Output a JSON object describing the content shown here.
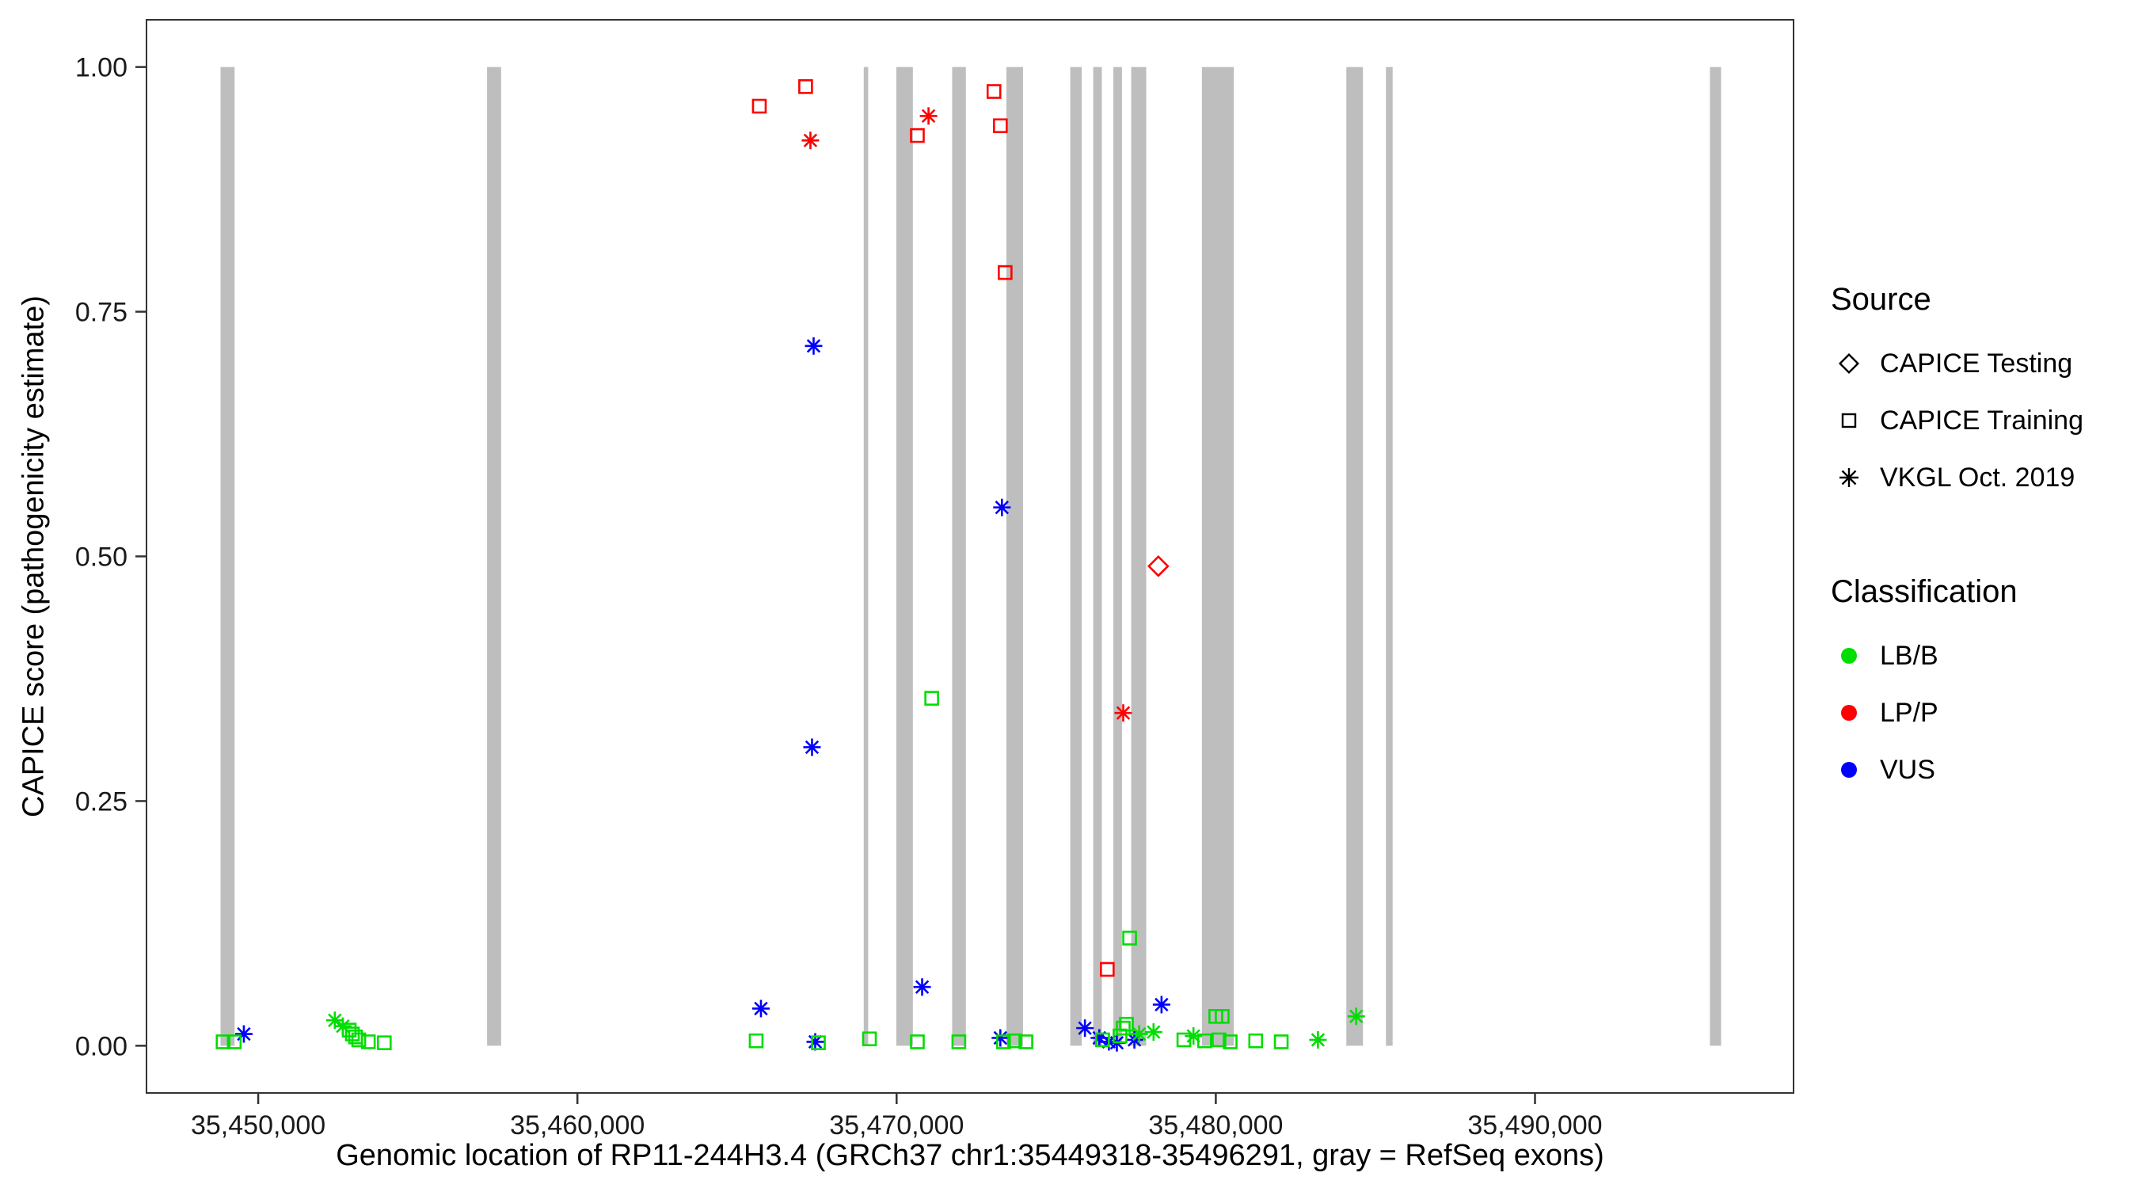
{
  "chart_data": {
    "type": "scatter",
    "title": "",
    "xlabel": "Genomic location of RP11-244H3.4 (GRCh37 chr1:35449318-35496291, gray = RefSeq exons)",
    "ylabel": "CAPICE score (pathogenicity estimate)",
    "x_range": [
      35446500,
      35498100
    ],
    "y_range": [
      0,
      1
    ],
    "x_ticks": [
      {
        "value": 35450000,
        "label": "35,450,000"
      },
      {
        "value": 35460000,
        "label": "35,460,000"
      },
      {
        "value": 35470000,
        "label": "35,470,000"
      },
      {
        "value": 35480000,
        "label": "35,480,000"
      },
      {
        "value": 35490000,
        "label": "35,490,000"
      }
    ],
    "y_ticks": [
      {
        "value": 0.0,
        "label": "0.00"
      },
      {
        "value": 0.25,
        "label": "0.25"
      },
      {
        "value": 0.5,
        "label": "0.50"
      },
      {
        "value": 0.75,
        "label": "0.75"
      },
      {
        "value": 1.0,
        "label": "1.00"
      }
    ],
    "colors": {
      "lbb": "#00DD00",
      "lpp": "#FF0000",
      "vus": "#0000FF",
      "exon": "#BEBEBE"
    },
    "shape_by_source": {
      "CAPICE Testing": "diamond",
      "CAPICE Training": "square",
      "VKGL Oct. 2019": "asterisk"
    },
    "exons": [
      [
        35448820,
        35449260
      ],
      [
        35457170,
        35457610
      ],
      [
        35468970,
        35469110
      ],
      [
        35469990,
        35470510
      ],
      [
        35471740,
        35472170
      ],
      [
        35473440,
        35473960
      ],
      [
        35475440,
        35475800
      ],
      [
        35476160,
        35476430
      ],
      [
        35476790,
        35477060
      ],
      [
        35477350,
        35477820
      ],
      [
        35479565,
        35480565
      ],
      [
        35484090,
        35484610
      ],
      [
        35485330,
        35485540
      ],
      [
        35495480,
        35495830
      ]
    ],
    "points": [
      {
        "x": 35465700,
        "y": 0.96,
        "source": "CAPICE Training",
        "classification": "LP/P"
      },
      {
        "x": 35467150,
        "y": 0.98,
        "source": "CAPICE Training",
        "classification": "LP/P"
      },
      {
        "x": 35467300,
        "y": 0.925,
        "source": "VKGL Oct. 2019",
        "classification": "LP/P"
      },
      {
        "x": 35470650,
        "y": 0.93,
        "source": "CAPICE Training",
        "classification": "LP/P"
      },
      {
        "x": 35471000,
        "y": 0.95,
        "source": "VKGL Oct. 2019",
        "classification": "LP/P"
      },
      {
        "x": 35473050,
        "y": 0.975,
        "source": "CAPICE Training",
        "classification": "LP/P"
      },
      {
        "x": 35473250,
        "y": 0.94,
        "source": "CAPICE Training",
        "classification": "LP/P"
      },
      {
        "x": 35473400,
        "y": 0.79,
        "source": "CAPICE Training",
        "classification": "LP/P"
      },
      {
        "x": 35476600,
        "y": 0.078,
        "source": "CAPICE Training",
        "classification": "LP/P"
      },
      {
        "x": 35477100,
        "y": 0.34,
        "source": "VKGL Oct. 2019",
        "classification": "LP/P"
      },
      {
        "x": 35478200,
        "y": 0.49,
        "source": "CAPICE Testing",
        "classification": "LP/P"
      },
      {
        "x": 35449550,
        "y": 0.012,
        "source": "VKGL Oct. 2019",
        "classification": "VUS"
      },
      {
        "x": 35465750,
        "y": 0.038,
        "source": "VKGL Oct. 2019",
        "classification": "VUS"
      },
      {
        "x": 35467400,
        "y": 0.715,
        "source": "VKGL Oct. 2019",
        "classification": "VUS"
      },
      {
        "x": 35467350,
        "y": 0.305,
        "source": "VKGL Oct. 2019",
        "classification": "VUS"
      },
      {
        "x": 35467450,
        "y": 0.004,
        "source": "VKGL Oct. 2019",
        "classification": "VUS"
      },
      {
        "x": 35470800,
        "y": 0.06,
        "source": "VKGL Oct. 2019",
        "classification": "VUS"
      },
      {
        "x": 35473300,
        "y": 0.55,
        "source": "VKGL Oct. 2019",
        "classification": "VUS"
      },
      {
        "x": 35473250,
        "y": 0.008,
        "source": "VKGL Oct. 2019",
        "classification": "VUS"
      },
      {
        "x": 35475900,
        "y": 0.018,
        "source": "VKGL Oct. 2019",
        "classification": "VUS"
      },
      {
        "x": 35476350,
        "y": 0.008,
        "source": "VKGL Oct. 2019",
        "classification": "VUS"
      },
      {
        "x": 35476650,
        "y": 0.004,
        "source": "VKGL Oct. 2019",
        "classification": "VUS"
      },
      {
        "x": 35476900,
        "y": 0.003,
        "source": "VKGL Oct. 2019",
        "classification": "VUS"
      },
      {
        "x": 35477450,
        "y": 0.006,
        "source": "VKGL Oct. 2019",
        "classification": "VUS"
      },
      {
        "x": 35478300,
        "y": 0.042,
        "source": "VKGL Oct. 2019",
        "classification": "VUS"
      },
      {
        "x": 35448900,
        "y": 0.004,
        "source": "CAPICE Training",
        "classification": "LB/B"
      },
      {
        "x": 35449250,
        "y": 0.004,
        "source": "CAPICE Training",
        "classification": "LB/B"
      },
      {
        "x": 35452400,
        "y": 0.026,
        "source": "VKGL Oct. 2019",
        "classification": "LB/B"
      },
      {
        "x": 35452650,
        "y": 0.02,
        "source": "VKGL Oct. 2019",
        "classification": "LB/B"
      },
      {
        "x": 35452850,
        "y": 0.016,
        "source": "CAPICE Training",
        "classification": "LB/B"
      },
      {
        "x": 35452950,
        "y": 0.012,
        "source": "CAPICE Training",
        "classification": "LB/B"
      },
      {
        "x": 35453050,
        "y": 0.009,
        "source": "CAPICE Training",
        "classification": "LB/B"
      },
      {
        "x": 35453150,
        "y": 0.006,
        "source": "CAPICE Training",
        "classification": "LB/B"
      },
      {
        "x": 35453450,
        "y": 0.004,
        "source": "CAPICE Training",
        "classification": "LB/B"
      },
      {
        "x": 35453950,
        "y": 0.003,
        "source": "CAPICE Training",
        "classification": "LB/B"
      },
      {
        "x": 35465600,
        "y": 0.005,
        "source": "CAPICE Training",
        "classification": "LB/B"
      },
      {
        "x": 35467550,
        "y": 0.003,
        "source": "CAPICE Training",
        "classification": "LB/B"
      },
      {
        "x": 35469150,
        "y": 0.007,
        "source": "CAPICE Training",
        "classification": "LB/B"
      },
      {
        "x": 35470650,
        "y": 0.004,
        "source": "CAPICE Training",
        "classification": "LB/B"
      },
      {
        "x": 35471100,
        "y": 0.355,
        "source": "CAPICE Training",
        "classification": "LB/B"
      },
      {
        "x": 35471950,
        "y": 0.004,
        "source": "CAPICE Training",
        "classification": "LB/B"
      },
      {
        "x": 35473350,
        "y": 0.004,
        "source": "CAPICE Training",
        "classification": "LB/B"
      },
      {
        "x": 35473700,
        "y": 0.005,
        "source": "CAPICE Training",
        "classification": "LB/B"
      },
      {
        "x": 35474050,
        "y": 0.004,
        "source": "CAPICE Training",
        "classification": "LB/B"
      },
      {
        "x": 35476450,
        "y": 0.006,
        "source": "CAPICE Training",
        "classification": "LB/B"
      },
      {
        "x": 35477000,
        "y": 0.01,
        "source": "CAPICE Training",
        "classification": "LB/B"
      },
      {
        "x": 35477100,
        "y": 0.018,
        "source": "CAPICE Training",
        "classification": "LB/B"
      },
      {
        "x": 35477200,
        "y": 0.022,
        "source": "CAPICE Training",
        "classification": "LB/B"
      },
      {
        "x": 35477300,
        "y": 0.11,
        "source": "CAPICE Training",
        "classification": "LB/B"
      },
      {
        "x": 35477600,
        "y": 0.012,
        "source": "VKGL Oct. 2019",
        "classification": "LB/B"
      },
      {
        "x": 35478050,
        "y": 0.014,
        "source": "VKGL Oct. 2019",
        "classification": "LB/B"
      },
      {
        "x": 35479000,
        "y": 0.006,
        "source": "CAPICE Training",
        "classification": "LB/B"
      },
      {
        "x": 35479300,
        "y": 0.01,
        "source": "VKGL Oct. 2019",
        "classification": "LB/B"
      },
      {
        "x": 35479650,
        "y": 0.005,
        "source": "CAPICE Training",
        "classification": "LB/B"
      },
      {
        "x": 35480000,
        "y": 0.03,
        "source": "CAPICE Training",
        "classification": "LB/B"
      },
      {
        "x": 35480100,
        "y": 0.006,
        "source": "CAPICE Training",
        "classification": "LB/B"
      },
      {
        "x": 35480200,
        "y": 0.03,
        "source": "CAPICE Training",
        "classification": "LB/B"
      },
      {
        "x": 35480450,
        "y": 0.004,
        "source": "CAPICE Training",
        "classification": "LB/B"
      },
      {
        "x": 35481250,
        "y": 0.005,
        "source": "CAPICE Training",
        "classification": "LB/B"
      },
      {
        "x": 35482050,
        "y": 0.004,
        "source": "CAPICE Training",
        "classification": "LB/B"
      },
      {
        "x": 35483200,
        "y": 0.006,
        "source": "VKGL Oct. 2019",
        "classification": "LB/B"
      },
      {
        "x": 35484400,
        "y": 0.03,
        "source": "VKGL Oct. 2019",
        "classification": "LB/B"
      }
    ]
  },
  "legend": {
    "source": {
      "title": "Source",
      "items": [
        {
          "label": "CAPICE Testing",
          "shape": "diamond"
        },
        {
          "label": "CAPICE Training",
          "shape": "square"
        },
        {
          "label": "VKGL Oct. 2019",
          "shape": "asterisk"
        }
      ]
    },
    "classification": {
      "title": "Classification",
      "items": [
        {
          "label": "LB/B",
          "color_key": "lbb"
        },
        {
          "label": "LP/P",
          "color_key": "lpp"
        },
        {
          "label": "VUS",
          "color_key": "vus"
        }
      ]
    }
  }
}
